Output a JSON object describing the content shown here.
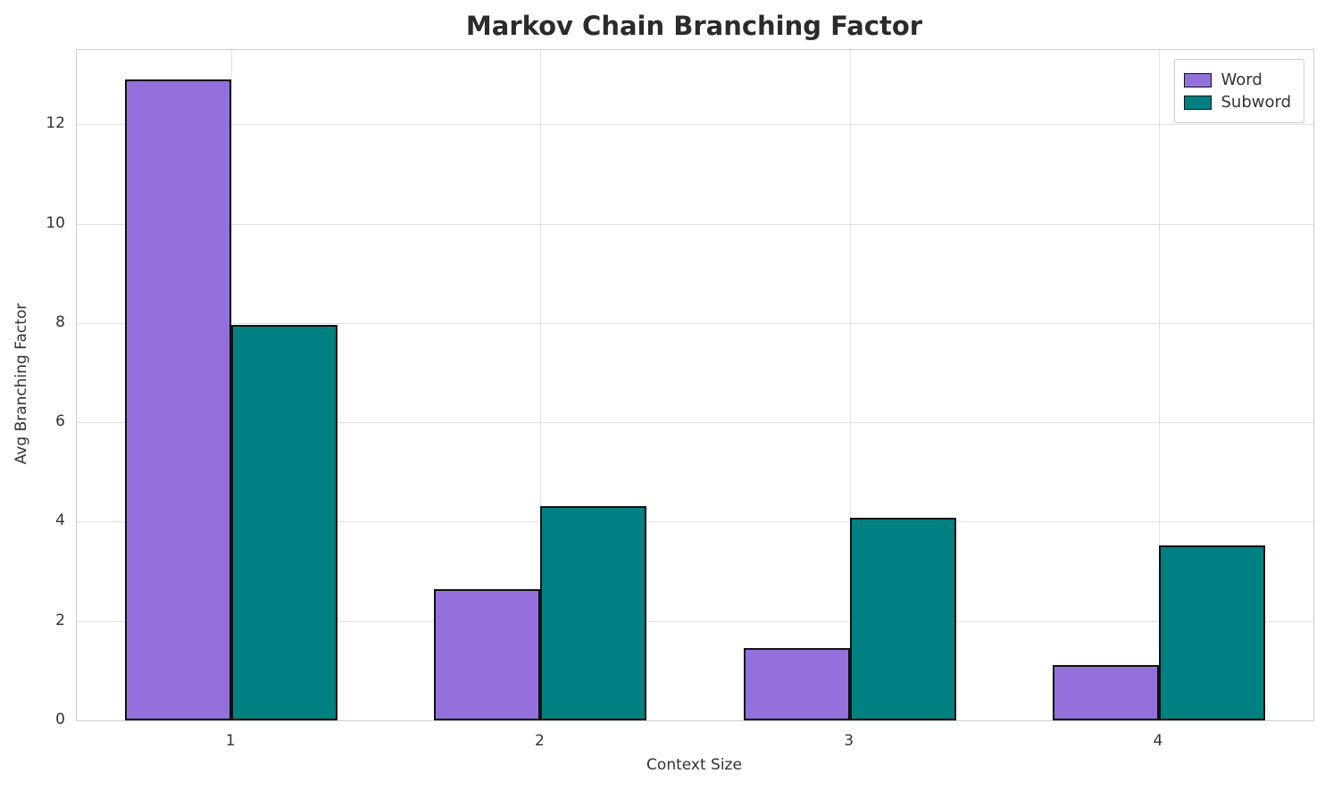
{
  "chart_data": {
    "type": "bar",
    "title": "Markov Chain Branching Factor",
    "xlabel": "Context Size",
    "ylabel": "Avg Branching Factor",
    "categories": [
      "1",
      "2",
      "3",
      "4"
    ],
    "series": [
      {
        "name": "Word",
        "color": "#9370db",
        "values": [
          12.9,
          2.65,
          1.45,
          1.12
        ]
      },
      {
        "name": "Subword",
        "color": "#008080",
        "values": [
          7.97,
          4.32,
          4.08,
          3.52
        ]
      }
    ],
    "ylim": [
      0,
      13.5
    ],
    "yticks": [
      0,
      2,
      4,
      6,
      8,
      10,
      12
    ],
    "grid": true,
    "legend_position": "upper right",
    "bar_edge_color": "#111111",
    "grid_color": "#e0e0e0"
  }
}
